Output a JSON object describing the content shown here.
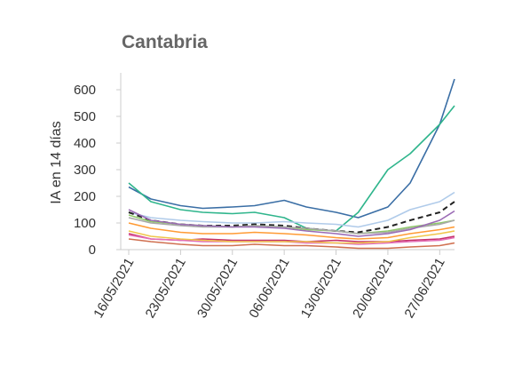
{
  "chart_data": {
    "type": "line",
    "title": "Cantabria",
    "ylabel": "IA en 14 días",
    "xlabel": "",
    "ylim": [
      0,
      650
    ],
    "yticks": [
      0,
      100,
      200,
      300,
      400,
      500,
      600
    ],
    "x": [
      "16/05/2021",
      "19/05/2021",
      "23/05/2021",
      "26/05/2021",
      "30/05/2021",
      "02/06/2021",
      "06/06/2021",
      "09/06/2021",
      "13/06/2021",
      "16/06/2021",
      "20/06/2021",
      "23/06/2021",
      "27/06/2021",
      "29/06/2021"
    ],
    "xticks": [
      "16/05/2021",
      "23/05/2021",
      "30/05/2021",
      "06/06/2021",
      "13/06/2021",
      "20/06/2021",
      "27/06/2021"
    ],
    "grid": false,
    "legend": "none",
    "series": [
      {
        "color": "#3a6ea5",
        "dashed": false,
        "values": [
          235,
          190,
          165,
          155,
          160,
          165,
          185,
          160,
          140,
          120,
          160,
          250,
          470,
          640
        ]
      },
      {
        "color": "#2fb58c",
        "dashed": false,
        "values": [
          250,
          180,
          150,
          140,
          135,
          140,
          120,
          80,
          70,
          140,
          300,
          360,
          470,
          540
        ]
      },
      {
        "color": "#b0cbea",
        "dashed": false,
        "values": [
          140,
          120,
          110,
          105,
          100,
          100,
          105,
          100,
          95,
          85,
          110,
          150,
          180,
          215
        ]
      },
      {
        "color": "#222222",
        "dashed": true,
        "values": [
          140,
          110,
          95,
          90,
          90,
          95,
          90,
          80,
          70,
          65,
          85,
          110,
          140,
          180
        ]
      },
      {
        "color": "#8fc96a",
        "dashed": false,
        "values": [
          130,
          105,
          95,
          90,
          85,
          90,
          85,
          75,
          70,
          60,
          70,
          85,
          100,
          110
        ]
      },
      {
        "color": "#a8a8a8",
        "dashed": false,
        "values": [
          120,
          100,
          90,
          85,
          85,
          90,
          85,
          80,
          70,
          60,
          65,
          80,
          95,
          110
        ]
      },
      {
        "color": "#9b6bb5",
        "dashed": false,
        "values": [
          150,
          110,
          95,
          90,
          85,
          85,
          80,
          70,
          60,
          50,
          60,
          75,
          110,
          145
        ]
      },
      {
        "color": "#ff9b35",
        "dashed": false,
        "values": [
          100,
          80,
          65,
          60,
          60,
          65,
          60,
          55,
          45,
          40,
          45,
          60,
          75,
          85
        ]
      },
      {
        "color": "#c5326a",
        "dashed": false,
        "values": [
          60,
          40,
          35,
          40,
          35,
          35,
          35,
          30,
          35,
          30,
          30,
          35,
          40,
          50
        ]
      },
      {
        "color": "#e36fb7",
        "dashed": false,
        "values": [
          55,
          40,
          35,
          30,
          30,
          30,
          30,
          25,
          25,
          20,
          25,
          30,
          35,
          45
        ]
      },
      {
        "color": "#f0c64b",
        "dashed": false,
        "values": [
          70,
          50,
          40,
          35,
          30,
          30,
          30,
          30,
          25,
          25,
          30,
          45,
          60,
          70
        ]
      },
      {
        "color": "#d07050",
        "dashed": false,
        "values": [
          40,
          30,
          20,
          15,
          15,
          20,
          15,
          15,
          10,
          5,
          5,
          10,
          15,
          25
        ]
      }
    ]
  }
}
